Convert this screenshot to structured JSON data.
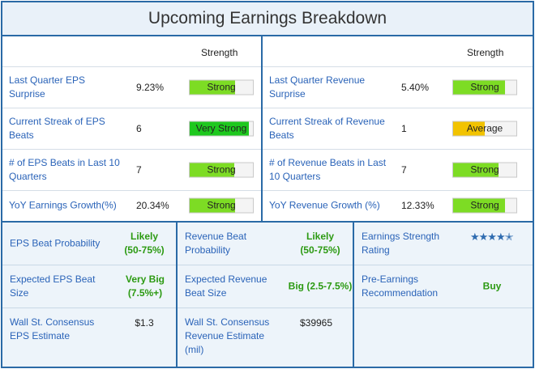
{
  "title": "Upcoming Earnings Breakdown",
  "colors": {
    "border": "#2a6aa6",
    "label": "#2a63b8",
    "green_text": "#2c9a12",
    "strong_fill": "#7ddc24",
    "very_strong_fill": "#1ec81e",
    "average_fill": "#f2c300"
  },
  "eps": {
    "strength_header": "Strength",
    "rows": [
      {
        "label": "Last Quarter EPS Surprise",
        "value": "9.23%",
        "rating": "Strong",
        "level": 0.72
      },
      {
        "label": "Current Streak of EPS Beats",
        "value": "6",
        "rating": "Very Strong",
        "level": 0.93
      },
      {
        "label": "# of EPS Beats in Last 10 Quarters",
        "value": "7",
        "rating": "Strong",
        "level": 0.7
      },
      {
        "label": "YoY Earnings Growth(%)",
        "value": "20.34%",
        "rating": "Strong",
        "level": 0.72
      }
    ]
  },
  "revenue": {
    "strength_header": "Strength",
    "rows": [
      {
        "label": "Last Quarter Revenue Surprise",
        "value": "5.40%",
        "rating": "Strong",
        "level": 0.82
      },
      {
        "label": "Current Streak of Revenue Beats",
        "value": "1",
        "rating": "Average",
        "level": 0.5
      },
      {
        "label": "# of Revenue Beats in Last 10 Quarters",
        "value": "7",
        "rating": "Strong",
        "level": 0.72
      },
      {
        "label": "YoY Revenue Growth (%)",
        "value": "12.33%",
        "rating": "Strong",
        "level": 0.82
      }
    ]
  },
  "bottom": {
    "eps_beat_probability": {
      "label": "EPS Beat Probability",
      "value": "Likely (50-75%)"
    },
    "expected_eps_beat_size": {
      "label": "Expected EPS Beat Size",
      "value": "Very Big (7.5%+)"
    },
    "consensus_eps": {
      "label": "Wall St. Consensus EPS Estimate",
      "value": "$1.3"
    },
    "revenue_beat_probability": {
      "label": "Revenue Beat Probability",
      "value": "Likely (50-75%)"
    },
    "expected_revenue_beat_size": {
      "label": "Expected Revenue Beat Size",
      "value": "Big (2.5-7.5%)"
    },
    "consensus_revenue": {
      "label": "Wall St. Consensus Revenue Estimate (mil)",
      "value": "$39965"
    },
    "earnings_strength_rating": {
      "label": "Earnings Strength Rating",
      "stars": 4.5,
      "icon": "star-rating-icon"
    },
    "pre_earnings_recommendation": {
      "label": "Pre-Earnings Recommendation",
      "value": "Buy"
    }
  }
}
